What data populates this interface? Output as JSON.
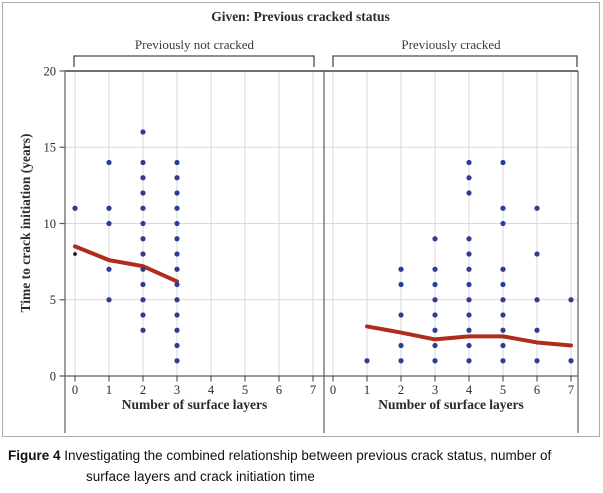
{
  "figure": {
    "title": "Given: Previous cracked status",
    "strip_labels": {
      "left": "Previously not cracked",
      "right": "Previously cracked"
    },
    "x_axis_label_left": "Number of surface layers",
    "x_axis_label_right": "Number of surface layers",
    "y_axis_label": "Time to crack initiation (years)"
  },
  "caption": {
    "label": "Figure 4",
    "line1": "Investigating the combined relationship between previous crack status, number of",
    "line2": "surface layers and crack initiation time"
  },
  "colors": {
    "point": "#2e3d94",
    "outlier_point": "#1c1c1c",
    "loess_line": "#b02c1c",
    "gridline": "#d9d9d9",
    "axis": "#5c5c5c",
    "bracket": "#4a4a4a",
    "outer_border": "#ababab"
  },
  "chart_data": {
    "type": "scatter",
    "title": "Given: Previous cracked status",
    "xlabel": "Number of surface layers",
    "ylabel": "Time to crack initiation (years)",
    "xlim": [
      0,
      7
    ],
    "ylim": [
      0,
      20
    ],
    "x_ticks": [
      0,
      1,
      2,
      3,
      4,
      5,
      6,
      7
    ],
    "y_ticks": [
      0,
      5,
      10,
      15,
      20
    ],
    "grid": true,
    "legend": "none",
    "panels": [
      {
        "name": "Previously not cracked",
        "points": [
          [
            0,
            11
          ],
          [
            1,
            5
          ],
          [
            1,
            7
          ],
          [
            1,
            10
          ],
          [
            1,
            11
          ],
          [
            1,
            14
          ],
          [
            2,
            3
          ],
          [
            2,
            4
          ],
          [
            2,
            5
          ],
          [
            2,
            6
          ],
          [
            2,
            7
          ],
          [
            2,
            8
          ],
          [
            2,
            9
          ],
          [
            2,
            10
          ],
          [
            2,
            11
          ],
          [
            2,
            12
          ],
          [
            2,
            13
          ],
          [
            2,
            14
          ],
          [
            2,
            16
          ],
          [
            3,
            1
          ],
          [
            3,
            2
          ],
          [
            3,
            3
          ],
          [
            3,
            4
          ],
          [
            3,
            5
          ],
          [
            3,
            6
          ],
          [
            3,
            7
          ],
          [
            3,
            8
          ],
          [
            3,
            9
          ],
          [
            3,
            10
          ],
          [
            3,
            11
          ],
          [
            3,
            12
          ],
          [
            3,
            13
          ],
          [
            3,
            14
          ]
        ],
        "black_points": [
          [
            0,
            8
          ]
        ],
        "loess": [
          [
            0,
            8.5
          ],
          [
            1,
            7.6
          ],
          [
            2,
            7.2
          ],
          [
            3,
            6.2
          ]
        ]
      },
      {
        "name": "Previously cracked",
        "points": [
          [
            1,
            1
          ],
          [
            2,
            1
          ],
          [
            2,
            2
          ],
          [
            2,
            4
          ],
          [
            2,
            6
          ],
          [
            2,
            7
          ],
          [
            3,
            1
          ],
          [
            3,
            2
          ],
          [
            3,
            3
          ],
          [
            3,
            4
          ],
          [
            3,
            5
          ],
          [
            3,
            6
          ],
          [
            3,
            7
          ],
          [
            3,
            9
          ],
          [
            4,
            1
          ],
          [
            4,
            2
          ],
          [
            4,
            3
          ],
          [
            4,
            4
          ],
          [
            4,
            5
          ],
          [
            4,
            6
          ],
          [
            4,
            7
          ],
          [
            4,
            8
          ],
          [
            4,
            9
          ],
          [
            4,
            12
          ],
          [
            4,
            13
          ],
          [
            4,
            14
          ],
          [
            5,
            1
          ],
          [
            5,
            2
          ],
          [
            5,
            3
          ],
          [
            5,
            4
          ],
          [
            5,
            5
          ],
          [
            5,
            6
          ],
          [
            5,
            7
          ],
          [
            5,
            10
          ],
          [
            5,
            11
          ],
          [
            5,
            14
          ],
          [
            6,
            1
          ],
          [
            6,
            3
          ],
          [
            6,
            5
          ],
          [
            6,
            8
          ],
          [
            6,
            11
          ],
          [
            7,
            1
          ],
          [
            7,
            5
          ]
        ],
        "black_points": [],
        "loess": [
          [
            1,
            3.25
          ],
          [
            2,
            2.85
          ],
          [
            3,
            2.4
          ],
          [
            4,
            2.6
          ],
          [
            5,
            2.6
          ],
          [
            6,
            2.2
          ],
          [
            7,
            2.0
          ]
        ]
      }
    ]
  }
}
